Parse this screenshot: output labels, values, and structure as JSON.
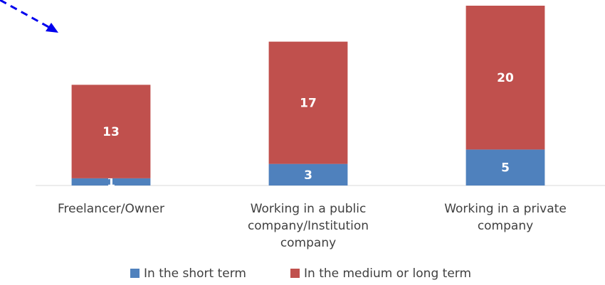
{
  "chart_data": {
    "type": "stacked_bar",
    "categories": [
      "Freelancer/Owner",
      "Working in a public\ncompany/Institution\ncompany",
      "Working in a private\ncompany"
    ],
    "series": [
      {
        "name": "In the short term",
        "color": "#4f81bd",
        "values": [
          1,
          3,
          5
        ]
      },
      {
        "name": "In the medium or long term",
        "color": "#c0504d",
        "values": [
          13,
          17,
          20
        ]
      }
    ],
    "ylim": [
      0,
      25
    ]
  }
}
